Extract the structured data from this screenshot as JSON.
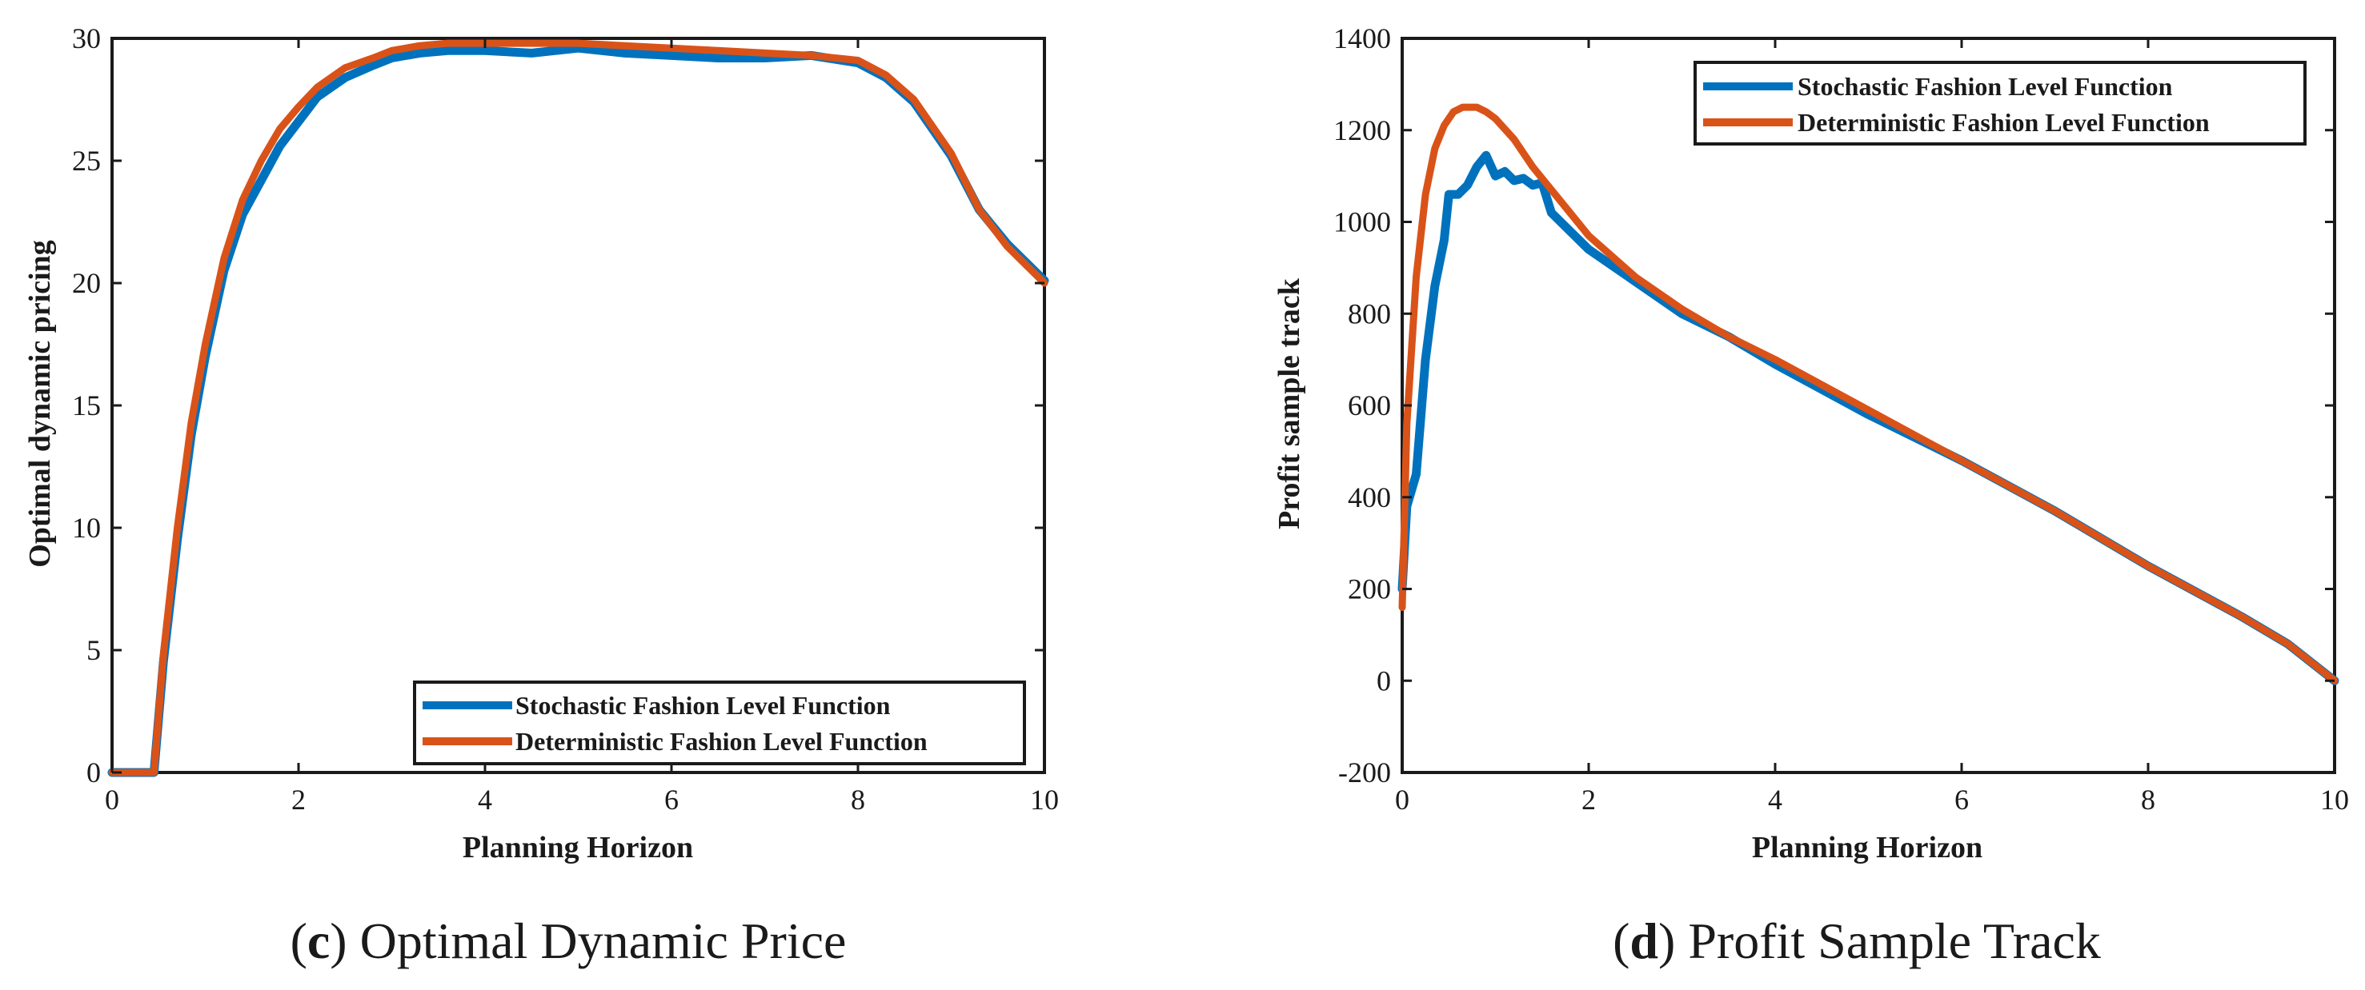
{
  "figure": {
    "panels": [
      {
        "caption_letter": "c",
        "caption_text": "Optimal Dynamic Price"
      },
      {
        "caption_letter": "d",
        "caption_text": "Profit Sample Track"
      }
    ]
  },
  "chart_data": [
    {
      "type": "line",
      "panel": "c",
      "title": "",
      "xlabel": "Planning Horizon",
      "ylabel": "Optimal dynamic pricing",
      "xlim": [
        0,
        10
      ],
      "ylim": [
        0,
        30
      ],
      "xticks": [
        0,
        2,
        4,
        6,
        8,
        10
      ],
      "yticks": [
        0,
        5,
        10,
        15,
        20,
        25,
        30
      ],
      "grid": false,
      "legend_position": "bottom-right",
      "series": [
        {
          "name": "Stochastic Fashion Level Function",
          "color": "#0072bd",
          "x": [
            0,
            0.45,
            0.55,
            0.7,
            0.85,
            1.0,
            1.2,
            1.4,
            1.6,
            1.8,
            2.0,
            2.2,
            2.5,
            2.8,
            3.0,
            3.3,
            3.6,
            4.0,
            4.5,
            5.0,
            5.5,
            6.0,
            6.5,
            7.0,
            7.5,
            8.0,
            8.3,
            8.6,
            9.0,
            9.3,
            9.6,
            10.0
          ],
          "values": [
            0,
            0,
            4.5,
            9.5,
            13.8,
            17.0,
            20.5,
            22.8,
            24.2,
            25.6,
            26.6,
            27.6,
            28.4,
            28.9,
            29.2,
            29.4,
            29.5,
            29.5,
            29.4,
            29.6,
            29.4,
            29.3,
            29.2,
            29.2,
            29.3,
            29.0,
            28.4,
            27.4,
            25.2,
            23.0,
            21.6,
            20.1
          ]
        },
        {
          "name": "Deterministic Fashion Level Function",
          "color": "#d95319",
          "x": [
            0,
            0.45,
            0.55,
            0.7,
            0.85,
            1.0,
            1.2,
            1.4,
            1.6,
            1.8,
            2.0,
            2.2,
            2.5,
            2.8,
            3.0,
            3.3,
            3.6,
            4.0,
            4.5,
            5.0,
            5.5,
            6.0,
            6.5,
            7.0,
            7.5,
            8.0,
            8.3,
            8.6,
            9.0,
            9.3,
            9.6,
            10.0
          ],
          "values": [
            0,
            0,
            4.8,
            10.0,
            14.3,
            17.5,
            21.0,
            23.4,
            25.0,
            26.3,
            27.2,
            28.0,
            28.8,
            29.2,
            29.5,
            29.7,
            29.8,
            29.8,
            29.8,
            29.8,
            29.7,
            29.6,
            29.5,
            29.4,
            29.3,
            29.1,
            28.5,
            27.5,
            25.3,
            23.0,
            21.5,
            20.0
          ]
        }
      ]
    },
    {
      "type": "line",
      "panel": "d",
      "title": "",
      "xlabel": "Planning Horizon",
      "ylabel": "Profit sample track",
      "xlim": [
        0,
        10
      ],
      "ylim": [
        -200,
        1400
      ],
      "xticks": [
        0,
        2,
        4,
        6,
        8,
        10
      ],
      "yticks": [
        -200,
        0,
        200,
        400,
        600,
        800,
        1000,
        1200,
        1400
      ],
      "grid": false,
      "legend_position": "top-right",
      "series": [
        {
          "name": "Stochastic Fashion Level Function",
          "color": "#0072bd",
          "x": [
            0,
            0.05,
            0.15,
            0.25,
            0.35,
            0.45,
            0.5,
            0.6,
            0.7,
            0.8,
            0.9,
            1.0,
            1.1,
            1.2,
            1.3,
            1.4,
            1.5,
            1.6,
            1.8,
            2.0,
            2.5,
            3.0,
            3.5,
            4.0,
            5.0,
            6.0,
            7.0,
            8.0,
            9.0,
            9.5,
            10.0
          ],
          "values": [
            200,
            380,
            450,
            700,
            860,
            960,
            1060,
            1060,
            1080,
            1120,
            1145,
            1100,
            1110,
            1090,
            1095,
            1080,
            1085,
            1020,
            980,
            940,
            870,
            800,
            750,
            690,
            580,
            480,
            370,
            250,
            140,
            80,
            0
          ]
        },
        {
          "name": "Deterministic Fashion Level Function",
          "color": "#d95319",
          "x": [
            0,
            0.05,
            0.15,
            0.25,
            0.35,
            0.45,
            0.55,
            0.65,
            0.8,
            0.9,
            1.0,
            1.2,
            1.4,
            1.6,
            1.8,
            2.0,
            2.5,
            3.0,
            3.5,
            4.0,
            5.0,
            6.0,
            7.0,
            8.0,
            9.0,
            9.5,
            10.0
          ],
          "values": [
            160,
            560,
            880,
            1060,
            1160,
            1210,
            1240,
            1250,
            1250,
            1240,
            1225,
            1180,
            1120,
            1070,
            1020,
            970,
            880,
            810,
            750,
            700,
            590,
            480,
            370,
            250,
            140,
            80,
            0
          ]
        }
      ]
    }
  ]
}
